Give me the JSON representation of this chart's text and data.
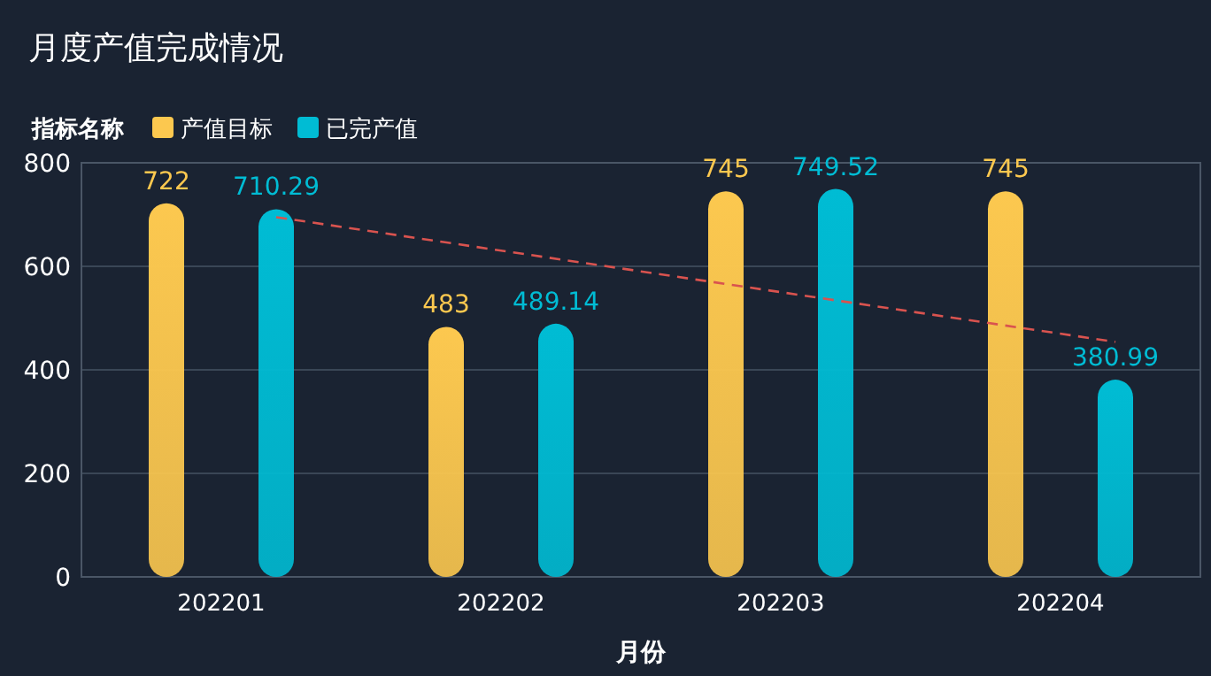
{
  "chart_data": {
    "type": "bar",
    "title": "月度产值完成情况",
    "legend_title": "指标名称",
    "xlabel": "月份",
    "categories": [
      "202201",
      "202202",
      "202203",
      "202204"
    ],
    "series": [
      {
        "name": "产值目标",
        "color": "#fcc84f",
        "values": [
          722,
          483,
          745,
          745
        ],
        "value_labels": [
          "722",
          "483",
          "745",
          "745"
        ]
      },
      {
        "name": "已完产值",
        "color": "#00bcd4",
        "values": [
          710.29,
          489.14,
          749.52,
          380.99
        ],
        "value_labels": [
          "710.29",
          "489.14",
          "749.52",
          "380.99"
        ]
      },
      {
        "type": "line",
        "color": "#d9534f",
        "line_style": "dashed",
        "x": [
          "202201",
          "202204"
        ],
        "values": [
          695,
          454
        ]
      }
    ],
    "ylim": [
      0,
      800
    ],
    "yticks": [
      0,
      200,
      400,
      600,
      800
    ],
    "grid": "y",
    "legend": "top left"
  }
}
